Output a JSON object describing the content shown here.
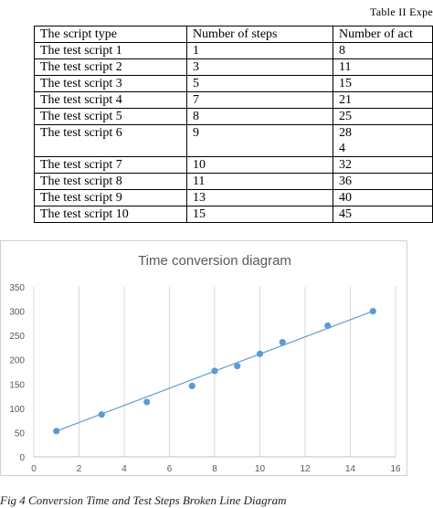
{
  "table": {
    "caption": "Table II Expe",
    "headers": [
      "The script type",
      "Number of steps",
      "Number of act"
    ],
    "rows": [
      [
        "The test script 1",
        "1",
        "8"
      ],
      [
        "The test script 2",
        "3",
        "11"
      ],
      [
        "The test script 3",
        "5",
        "15"
      ],
      [
        "The test script 4",
        "7",
        "21"
      ],
      [
        "The test script 5",
        "8",
        "25"
      ],
      [
        "The test script 6",
        "9",
        "28\n4"
      ],
      [
        "The test script 7",
        "10",
        "32"
      ],
      [
        "The test script 8",
        "11",
        "36"
      ],
      [
        "The test script 9",
        "13",
        "40"
      ],
      [
        "The test script 10",
        "15",
        "45"
      ]
    ]
  },
  "chart_data": {
    "type": "scatter",
    "title": "Time conversion diagram",
    "xlabel": "",
    "ylabel": "",
    "xlim": [
      0,
      16
    ],
    "ylim": [
      0,
      350
    ],
    "x_ticks": [
      0,
      2,
      4,
      6,
      8,
      10,
      12,
      14,
      16
    ],
    "y_ticks": [
      0,
      50,
      100,
      150,
      200,
      250,
      300,
      350
    ],
    "grid": "vertical",
    "legend": "none",
    "series": [
      {
        "x": [
          1,
          3,
          5,
          7,
          8,
          9,
          10,
          11,
          13,
          15
        ],
        "y": [
          53,
          87,
          113,
          146,
          177,
          187,
          212,
          236,
          270,
          300
        ],
        "color": "#5b9bd5",
        "trendline": {
          "from": [
            1,
            53
          ],
          "to": [
            15,
            300
          ]
        }
      }
    ]
  },
  "figure": {
    "caption": "Fig 4 Conversion Time and Test Steps Broken Line Diagram"
  }
}
